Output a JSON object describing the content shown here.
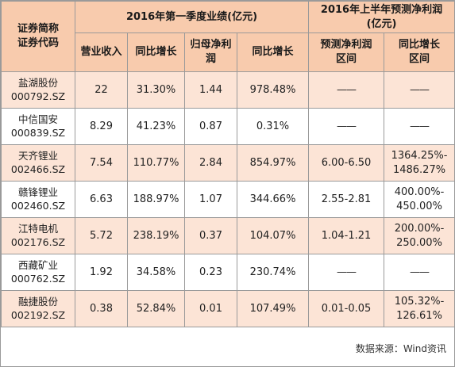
{
  "header": {
    "stock_col_line1": "证券简称",
    "stock_col_line2": "证券代码",
    "group1_title": "2016年第一季度业绩(亿元)",
    "group2_title_line1": "2016年上半年预测净利润",
    "group2_title_line2": "(亿元)",
    "revenue": "营业收入",
    "revenue_yoy": "同比增长",
    "net_profit_line1": "归母净利",
    "net_profit_line2": "润",
    "profit_yoy": "同比增长",
    "forecast_line1": "预测净利润",
    "forecast_line2": "区间",
    "forecast_yoy_line1": "同比增长",
    "forecast_yoy_line2": "区间"
  },
  "rows": [
    {
      "name": "盐湖股份",
      "code": "000792.SZ",
      "revenue": "22",
      "revenue_yoy": "31.30%",
      "net_profit": "1.44",
      "profit_yoy": "978.48%",
      "forecast": "——",
      "forecast_yoy_line1": "——",
      "forecast_yoy_line2": ""
    },
    {
      "name": "中信国安",
      "code": "000839.SZ",
      "revenue": "8.29",
      "revenue_yoy": "41.23%",
      "net_profit": "0.87",
      "profit_yoy": "0.31%",
      "forecast": "——",
      "forecast_yoy_line1": "——",
      "forecast_yoy_line2": ""
    },
    {
      "name": "天齐锂业",
      "code": "002466.SZ",
      "revenue": "7.54",
      "revenue_yoy": "110.77%",
      "net_profit": "2.84",
      "profit_yoy": "854.97%",
      "forecast": "6.00-6.50",
      "forecast_yoy_line1": "1364.25%-",
      "forecast_yoy_line2": "1486.27%"
    },
    {
      "name": "赣锋锂业",
      "code": "002460.SZ",
      "revenue": "6.63",
      "revenue_yoy": "188.97%",
      "net_profit": "1.07",
      "profit_yoy": "344.66%",
      "forecast": "2.55-2.81",
      "forecast_yoy_line1": "400.00%-",
      "forecast_yoy_line2": "450.00%"
    },
    {
      "name": "江特电机",
      "code": "002176.SZ",
      "revenue": "5.72",
      "revenue_yoy": "238.19%",
      "net_profit": "0.37",
      "profit_yoy": "104.07%",
      "forecast": "1.04-1.21",
      "forecast_yoy_line1": "200.00%-",
      "forecast_yoy_line2": "250.00%"
    },
    {
      "name": "西藏矿业",
      "code": "000762.SZ",
      "revenue": "1.92",
      "revenue_yoy": "34.58%",
      "net_profit": "0.23",
      "profit_yoy": "230.74%",
      "forecast": "——",
      "forecast_yoy_line1": "——",
      "forecast_yoy_line2": ""
    },
    {
      "name": "融捷股份",
      "code": "002192.SZ",
      "revenue": "0.38",
      "revenue_yoy": "52.84%",
      "net_profit": "0.01",
      "profit_yoy": "107.49%",
      "forecast": "0.01-0.05",
      "forecast_yoy_line1": "105.32%-",
      "forecast_yoy_line2": "126.61%"
    }
  ],
  "footer": {
    "source": "数据来源：Wind资讯"
  },
  "colors": {
    "header_bg": "#f8cbad",
    "alt_row_bg": "#fce4d6",
    "border": "#9a9a9a"
  }
}
